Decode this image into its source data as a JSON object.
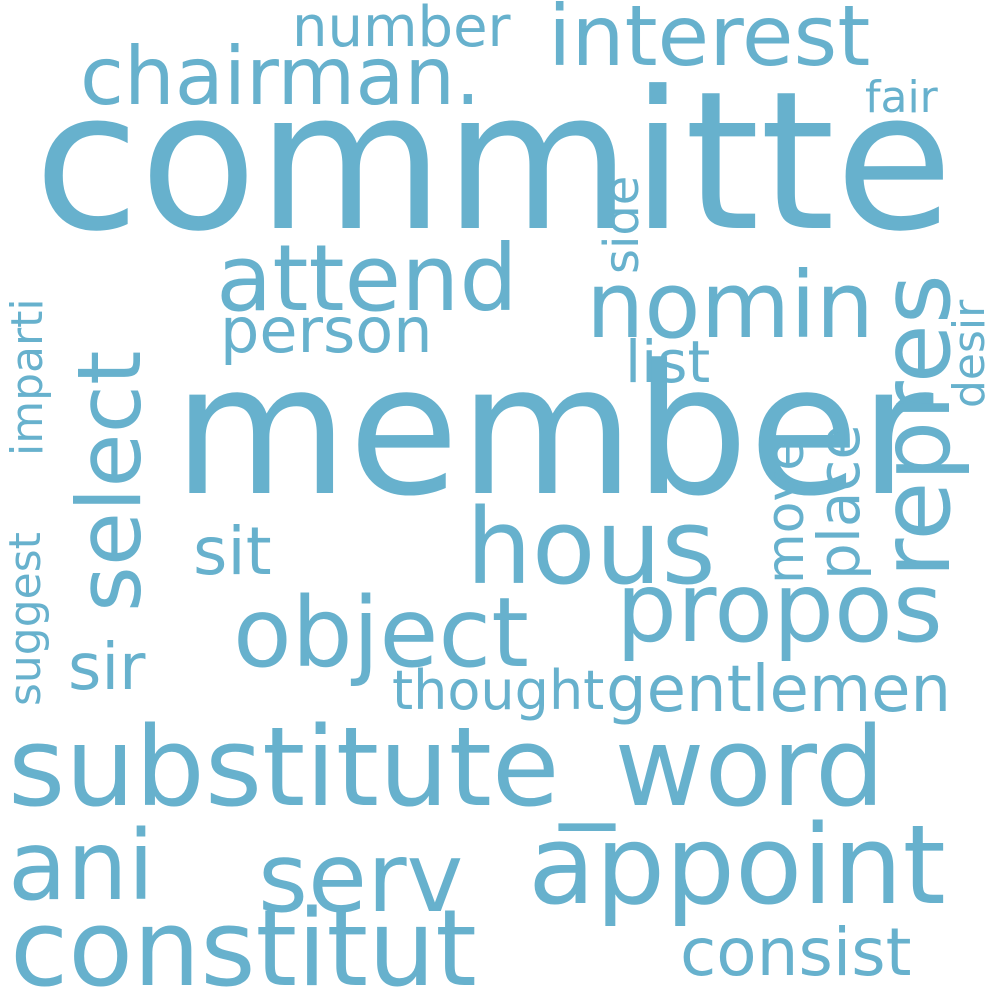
{
  "color": "#67b1cd",
  "words": {
    "committe": "committe",
    "member": "member",
    "substitute_word": "substitute_word",
    "appoint": "appoint",
    "constitut": "constitut",
    "select": "select",
    "interest": "interest",
    "chairman": "chairman.",
    "nomin": "nomin",
    "attend": "attend",
    "hous": "hous",
    "propos": "propos",
    "object": "object",
    "repres": "repres",
    "ani": "ani",
    "serv": "serv",
    "gentlemen": "gentlemen",
    "consist": "consist",
    "person": "person",
    "number": "number",
    "list": "list",
    "place": "place",
    "move": "move",
    "sit": "sit",
    "sir": "sir",
    "thought": "thought",
    "fair": "fair",
    "side": "side",
    "desir": "desir",
    "imparti": "imparti",
    "suggest": "suggest"
  }
}
